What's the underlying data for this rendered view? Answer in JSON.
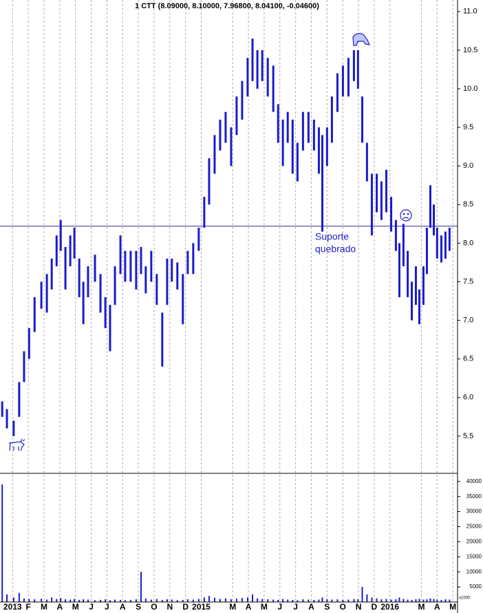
{
  "chart_data": {
    "type": "range-bar",
    "title": "1 CTT (8.09000, 8.10000, 7.96800, 8.04100, -0.04600)",
    "annotation": [
      "Suporte",
      "quebrado"
    ],
    "volume_unit": "x1000",
    "color": "#1a1acc",
    "support_level": 8.22,
    "x": [
      -0.66,
      -0.36,
      0.07,
      0.42,
      0.73,
      1.05,
      1.4,
      1.83,
      2.18,
      2.49,
      2.8,
      3.06,
      3.36,
      3.67,
      3.93,
      4.24,
      4.5,
      4.8,
      5.24,
      5.59,
      5.9,
      6.2,
      6.51,
      6.86,
      7.16,
      7.51,
      7.86,
      8.17,
      8.47,
      8.82,
      9.17,
      9.52,
      9.83,
      10.13,
      10.48,
      10.83,
      11.14,
      11.49,
      11.84,
      12.19,
      12.5,
      12.85,
      13.2,
      13.55,
      13.9,
      14.25,
      14.6,
      14.95,
      15.26,
      15.57,
      15.88,
      16.23,
      16.58,
      16.89,
      17.19,
      17.5,
      17.81,
      18.12,
      18.47,
      18.82,
      19.17,
      19.48,
      19.7,
      20.0,
      20.31,
      20.66,
      21.01,
      21.36,
      21.71,
      21.97,
      22.24,
      22.54,
      22.85,
      23.16,
      23.46,
      23.77,
      24.08,
      24.38,
      24.6,
      24.86,
      25.13,
      25.39,
      25.65,
      25.87,
      26.13,
      26.35,
      26.57,
      26.79,
      27.0,
      27.27,
      27.53,
      27.79
    ],
    "low": [
      5.75,
      5.6,
      5.5,
      5.75,
      6.2,
      6.5,
      6.85,
      7.15,
      7.1,
      7.4,
      7.7,
      7.9,
      7.4,
      7.7,
      7.8,
      7.3,
      6.95,
      7.3,
      7.5,
      7.1,
      6.9,
      6.6,
      7.2,
      7.6,
      7.5,
      7.5,
      7.4,
      7.6,
      7.35,
      7.5,
      7.2,
      6.4,
      7.2,
      7.5,
      7.4,
      6.95,
      7.6,
      7.6,
      7.9,
      8.2,
      8.5,
      8.9,
      9.2,
      9.3,
      9.0,
      9.4,
      9.6,
      9.9,
      10.1,
      10.0,
      10.1,
      9.9,
      9.7,
      9.3,
      9.0,
      9.3,
      8.9,
      8.8,
      9.2,
      9.3,
      9.2,
      8.9,
      8.15,
      9.0,
      9.3,
      9.7,
      9.9,
      9.9,
      10.1,
      10.0,
      9.3,
      8.8,
      8.1,
      8.4,
      8.3,
      8.4,
      8.15,
      7.9,
      7.3,
      7.7,
      7.3,
      7.0,
      7.2,
      6.95,
      7.2,
      7.6,
      8.2,
      8.1,
      7.8,
      7.75,
      7.8,
      7.9
    ],
    "high": [
      5.95,
      5.85,
      5.7,
      6.2,
      6.6,
      6.9,
      7.3,
      7.5,
      7.6,
      7.8,
      8.1,
      8.3,
      7.95,
      8.1,
      8.2,
      7.8,
      7.5,
      7.7,
      7.85,
      7.6,
      7.3,
      7.2,
      7.7,
      8.1,
      7.9,
      7.9,
      7.9,
      7.95,
      7.7,
      7.9,
      7.6,
      7.1,
      7.8,
      7.8,
      7.75,
      7.6,
      7.9,
      8.0,
      8.2,
      8.6,
      9.1,
      9.4,
      9.6,
      9.7,
      9.5,
      9.9,
      10.1,
      10.4,
      10.65,
      10.5,
      10.5,
      10.4,
      10.3,
      9.8,
      9.6,
      9.7,
      9.6,
      9.3,
      9.7,
      9.7,
      9.6,
      9.5,
      9.4,
      9.5,
      9.9,
      10.2,
      10.3,
      10.4,
      10.5,
      10.5,
      9.9,
      9.3,
      8.9,
      8.9,
      8.8,
      8.95,
      8.6,
      8.3,
      8.0,
      8.25,
      7.9,
      7.5,
      7.7,
      7.4,
      7.7,
      8.2,
      8.75,
      8.5,
      8.2,
      8.1,
      8.15,
      8.2
    ],
    "volume": [
      39000,
      2500,
      1500,
      3000,
      1200,
      1000,
      900,
      1100,
      800,
      1500,
      1000,
      1300,
      900,
      800,
      1000,
      700,
      900,
      800,
      600,
      700,
      900,
      600,
      800,
      700,
      600,
      700,
      900,
      10000,
      1200,
      800,
      1000,
      700,
      900,
      800,
      600,
      700,
      900,
      800,
      1000,
      1500,
      2000,
      1400,
      1000,
      1200,
      900,
      1100,
      1300,
      1500,
      2500,
      1200,
      1000,
      900,
      800,
      700,
      1000,
      800,
      700,
      600,
      900,
      800,
      700,
      800,
      1500,
      900,
      800,
      900,
      700,
      800,
      1000,
      900,
      5000,
      2500,
      1500,
      1200,
      900,
      1000,
      800,
      900,
      1500,
      1000,
      800,
      700,
      900,
      1000,
      800,
      900,
      1200,
      1000,
      800,
      700,
      900,
      800
    ],
    "xlim": [
      -0.8,
      28.3
    ],
    "xticks": [
      {
        "value": 0,
        "label": "2013"
      },
      {
        "value": 1,
        "label": "F"
      },
      {
        "value": 2,
        "label": "M"
      },
      {
        "value": 3,
        "label": "A"
      },
      {
        "value": 4,
        "label": "M"
      },
      {
        "value": 5,
        "label": "J"
      },
      {
        "value": 6,
        "label": "J"
      },
      {
        "value": 7,
        "label": "A"
      },
      {
        "value": 8,
        "label": "S"
      },
      {
        "value": 9,
        "label": "O"
      },
      {
        "value": 10,
        "label": "N"
      },
      {
        "value": 11,
        "label": "D"
      },
      {
        "value": 12,
        "label": "2015"
      },
      {
        "value": 14,
        "label": "M"
      },
      {
        "value": 15,
        "label": "A"
      },
      {
        "value": 16,
        "label": "M"
      },
      {
        "value": 17,
        "label": "J"
      },
      {
        "value": 18,
        "label": "J"
      },
      {
        "value": 19,
        "label": "A"
      },
      {
        "value": 20,
        "label": "S"
      },
      {
        "value": 21,
        "label": "O"
      },
      {
        "value": 22,
        "label": "N"
      },
      {
        "value": 23,
        "label": "D"
      },
      {
        "value": 24,
        "label": "2016"
      },
      {
        "value": 26,
        "label": "M"
      },
      {
        "value": 27,
        "label": "A"
      },
      {
        "value": 28,
        "label": "M"
      }
    ],
    "ylim": [
      5.0,
      11.15
    ],
    "yticks": [
      5.5,
      {
        "value": 6,
        "label": "6.0"
      },
      6.5,
      {
        "value": 7,
        "label": "7.0"
      },
      7.5,
      {
        "value": 8,
        "label": "8.0"
      },
      8.5,
      {
        "value": 9,
        "label": "9.0"
      },
      9.5,
      {
        "value": 10,
        "label": "10.0"
      },
      10.5,
      {
        "value": 11,
        "label": "11.0"
      }
    ],
    "volume_ylim": [
      0,
      42000
    ],
    "volume_yticks": [
      5000,
      10000,
      15000,
      20000,
      25000,
      30000,
      35000,
      40000
    ],
    "grid": true
  }
}
